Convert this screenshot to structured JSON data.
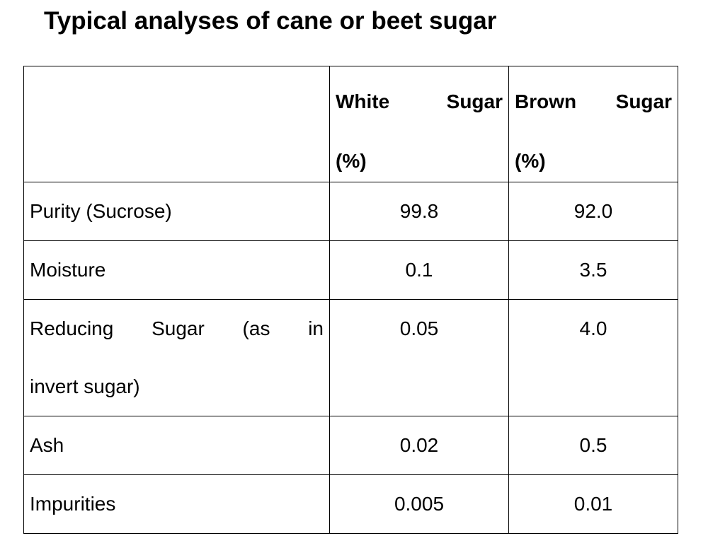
{
  "title": "Typical analyses of cane or beet sugar",
  "table": {
    "header": {
      "corner": "",
      "white_line1": "White Sugar",
      "white_line2": "(%)",
      "brown_line1": "Brown Sugar",
      "brown_line2": "(%)"
    },
    "rows": [
      {
        "label": "Purity (Sucrose)",
        "white": "99.8",
        "brown": "92.0"
      },
      {
        "label": "Moisture",
        "white": "0.1",
        "brown": "3.5"
      },
      {
        "label_line1": "Reducing Sugar (as in",
        "label_line2": "invert sugar)",
        "white": "0.05",
        "brown": "4.0"
      },
      {
        "label": "Ash",
        "white": "0.02",
        "brown": "0.5"
      },
      {
        "label": "Impurities",
        "white": "0.005",
        "brown": "0.01"
      }
    ]
  }
}
